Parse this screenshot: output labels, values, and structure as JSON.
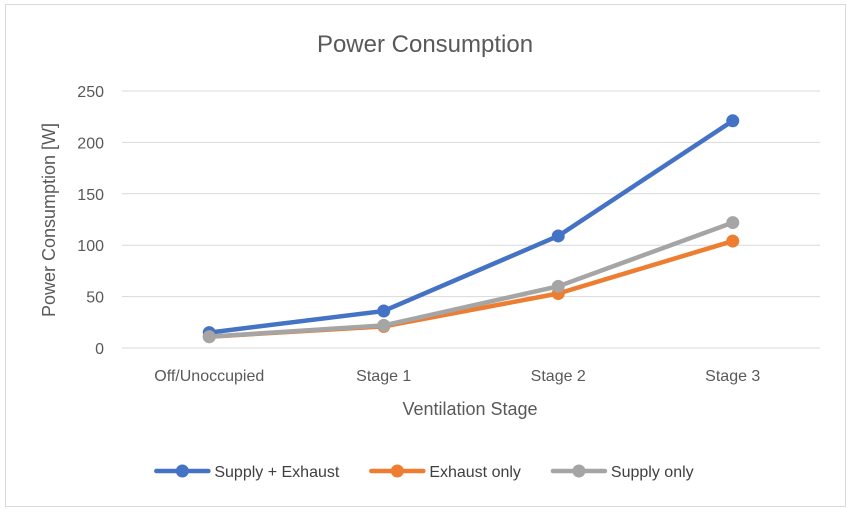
{
  "chart_data": {
    "type": "line",
    "title": "Power Consumption",
    "xlabel": "Ventilation Stage",
    "ylabel": "Power Consumption [W]",
    "categories": [
      "Off/Unoccupied",
      "Stage 1",
      "Stage 2",
      "Stage 3"
    ],
    "ylim": [
      0,
      250
    ],
    "yticks": [
      0,
      50,
      100,
      150,
      200,
      250
    ],
    "grid": true,
    "legend_position": "bottom",
    "series": [
      {
        "name": "Supply + Exhaust",
        "color": "#4472C4",
        "values": [
          15,
          36,
          109,
          221
        ]
      },
      {
        "name": "Exhaust only",
        "color": "#ED7D31",
        "values": [
          11,
          21,
          53,
          104
        ]
      },
      {
        "name": "Supply only",
        "color": "#A5A5A5",
        "values": [
          11,
          22,
          60,
          122
        ]
      }
    ]
  }
}
